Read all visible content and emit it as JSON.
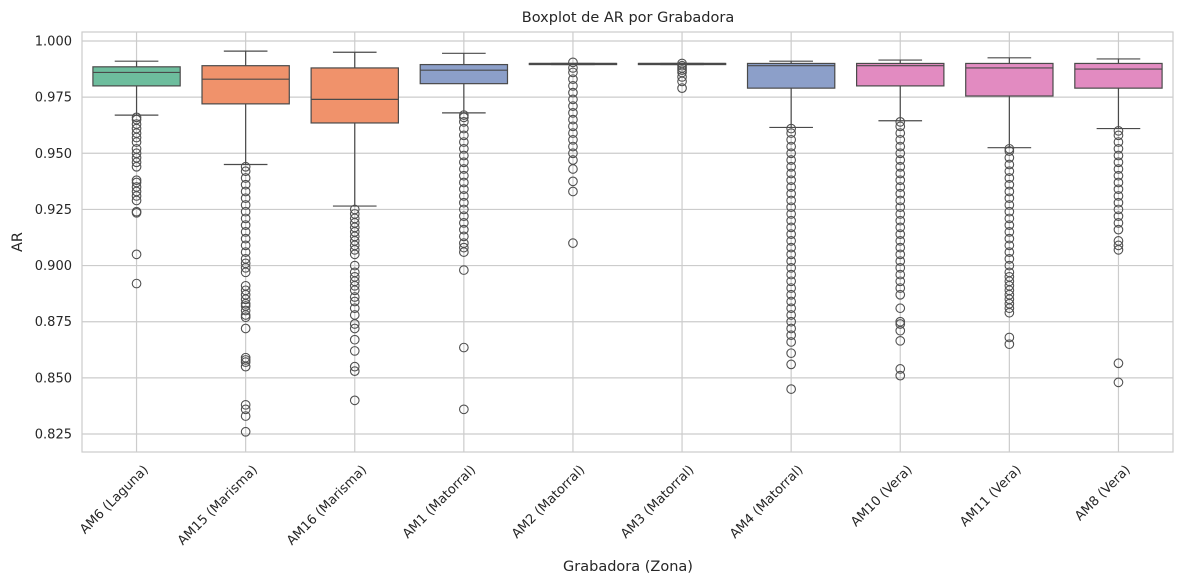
{
  "chart_data": {
    "type": "box",
    "title": "Boxplot de AR por Grabadora",
    "xlabel": "Grabadora (Zona)",
    "ylabel": "AR",
    "ylim": [
      0.817,
      1.004
    ],
    "yticks": [
      "0.825",
      "0.850",
      "0.875",
      "0.900",
      "0.925",
      "0.950",
      "0.975",
      "1.000"
    ],
    "grid": true,
    "categories": [
      "AM6 (Laguna)",
      "AM15 (Marisma)",
      "AM16 (Marisma)",
      "AM1 (Matorral)",
      "AM2 (Matorral)",
      "AM3 (Matorral)",
      "AM4 (Matorral)",
      "AM10 (Vera)",
      "AM11 (Vera)",
      "AM8 (Vera)"
    ],
    "colors": [
      "#6dbd9d",
      "#f0926b",
      "#f0926b",
      "#8c9fc9",
      "#8c9fc9",
      "#8c9fc9",
      "#8c9fc9",
      "#e28bc1",
      "#e28bc1",
      "#e28bc1"
    ],
    "boxes": [
      {
        "category": "AM6 (Laguna)",
        "whisker_low": 0.967,
        "q1": 0.98,
        "median": 0.986,
        "q3": 0.9885,
        "whisker_high": 0.991,
        "outliers": [
          0.892,
          0.905,
          0.9235,
          0.924,
          0.929,
          0.931,
          0.933,
          0.935,
          0.937,
          0.938,
          0.944,
          0.946,
          0.948,
          0.95,
          0.952,
          0.955,
          0.957,
          0.959,
          0.961,
          0.963,
          0.965,
          0.966
        ]
      },
      {
        "category": "AM15 (Marisma)",
        "whisker_low": 0.945,
        "q1": 0.972,
        "median": 0.983,
        "q3": 0.989,
        "whisker_high": 0.9955,
        "outliers": [
          0.826,
          0.833,
          0.836,
          0.838,
          0.855,
          0.857,
          0.858,
          0.859,
          0.872,
          0.877,
          0.878,
          0.88,
          0.882,
          0.883,
          0.885,
          0.887,
          0.889,
          0.891,
          0.897,
          0.899,
          0.901,
          0.903,
          0.906,
          0.909,
          0.912,
          0.915,
          0.918,
          0.921,
          0.924,
          0.927,
          0.93,
          0.933,
          0.936,
          0.939,
          0.942,
          0.944
        ]
      },
      {
        "category": "AM16 (Marisma)",
        "whisker_low": 0.9265,
        "q1": 0.9635,
        "median": 0.974,
        "q3": 0.988,
        "whisker_high": 0.995,
        "outliers": [
          0.84,
          0.853,
          0.855,
          0.862,
          0.867,
          0.872,
          0.874,
          0.878,
          0.881,
          0.884,
          0.886,
          0.889,
          0.891,
          0.893,
          0.895,
          0.897,
          0.9,
          0.905,
          0.907,
          0.909,
          0.911,
          0.913,
          0.915,
          0.917,
          0.919,
          0.921,
          0.923,
          0.925
        ]
      },
      {
        "category": "AM1 (Matorral)",
        "whisker_low": 0.968,
        "q1": 0.981,
        "median": 0.987,
        "q3": 0.9895,
        "whisker_high": 0.9945,
        "outliers": [
          0.836,
          0.8635,
          0.898,
          0.906,
          0.908,
          0.91,
          0.913,
          0.916,
          0.919,
          0.922,
          0.925,
          0.928,
          0.931,
          0.934,
          0.937,
          0.94,
          0.943,
          0.946,
          0.949,
          0.952,
          0.955,
          0.958,
          0.961,
          0.964,
          0.966,
          0.967
        ]
      },
      {
        "category": "AM2 (Matorral)",
        "whisker_low": 0.9895,
        "q1": 0.9895,
        "median": 0.99,
        "q3": 0.99,
        "whisker_high": 0.99,
        "outliers": [
          0.91,
          0.933,
          0.9375,
          0.943,
          0.947,
          0.95,
          0.953,
          0.956,
          0.959,
          0.962,
          0.965,
          0.968,
          0.971,
          0.974,
          0.977,
          0.98,
          0.983,
          0.986,
          0.988,
          0.9905
        ]
      },
      {
        "category": "AM3 (Matorral)",
        "whisker_low": 0.9895,
        "q1": 0.9895,
        "median": 0.99,
        "q3": 0.99,
        "whisker_high": 0.99,
        "outliers": [
          0.979,
          0.982,
          0.984,
          0.986,
          0.987,
          0.988,
          0.989,
          0.99
        ]
      },
      {
        "category": "AM4 (Matorral)",
        "whisker_low": 0.9615,
        "q1": 0.979,
        "median": 0.989,
        "q3": 0.99,
        "whisker_high": 0.991,
        "outliers": [
          0.845,
          0.856,
          0.861,
          0.866,
          0.869,
          0.872,
          0.875,
          0.878,
          0.881,
          0.884,
          0.887,
          0.89,
          0.893,
          0.896,
          0.899,
          0.902,
          0.905,
          0.908,
          0.911,
          0.914,
          0.917,
          0.92,
          0.923,
          0.926,
          0.929,
          0.932,
          0.935,
          0.938,
          0.941,
          0.944,
          0.947,
          0.95,
          0.953,
          0.956,
          0.959,
          0.961
        ]
      },
      {
        "category": "AM10 (Vera)",
        "whisker_low": 0.9645,
        "q1": 0.98,
        "median": 0.989,
        "q3": 0.99,
        "whisker_high": 0.9915,
        "outliers": [
          0.851,
          0.854,
          0.8665,
          0.871,
          0.874,
          0.875,
          0.881,
          0.887,
          0.89,
          0.893,
          0.896,
          0.899,
          0.902,
          0.905,
          0.908,
          0.911,
          0.914,
          0.917,
          0.92,
          0.923,
          0.926,
          0.929,
          0.932,
          0.935,
          0.938,
          0.941,
          0.944,
          0.947,
          0.95,
          0.953,
          0.956,
          0.959,
          0.962,
          0.964
        ]
      },
      {
        "category": "AM11 (Vera)",
        "whisker_low": 0.9525,
        "q1": 0.9755,
        "median": 0.988,
        "q3": 0.99,
        "whisker_high": 0.9925,
        "outliers": [
          0.865,
          0.868,
          0.879,
          0.881,
          0.883,
          0.885,
          0.887,
          0.889,
          0.891,
          0.893,
          0.895,
          0.897,
          0.9,
          0.903,
          0.906,
          0.909,
          0.912,
          0.915,
          0.918,
          0.921,
          0.924,
          0.927,
          0.93,
          0.933,
          0.936,
          0.939,
          0.942,
          0.945,
          0.948,
          0.951,
          0.952
        ]
      },
      {
        "category": "AM8 (Vera)",
        "whisker_low": 0.961,
        "q1": 0.979,
        "median": 0.9875,
        "q3": 0.99,
        "whisker_high": 0.992,
        "outliers": [
          0.848,
          0.8565,
          0.907,
          0.909,
          0.911,
          0.916,
          0.919,
          0.922,
          0.925,
          0.928,
          0.931,
          0.934,
          0.937,
          0.94,
          0.943,
          0.946,
          0.949,
          0.952,
          0.955,
          0.958,
          0.96
        ]
      }
    ]
  }
}
